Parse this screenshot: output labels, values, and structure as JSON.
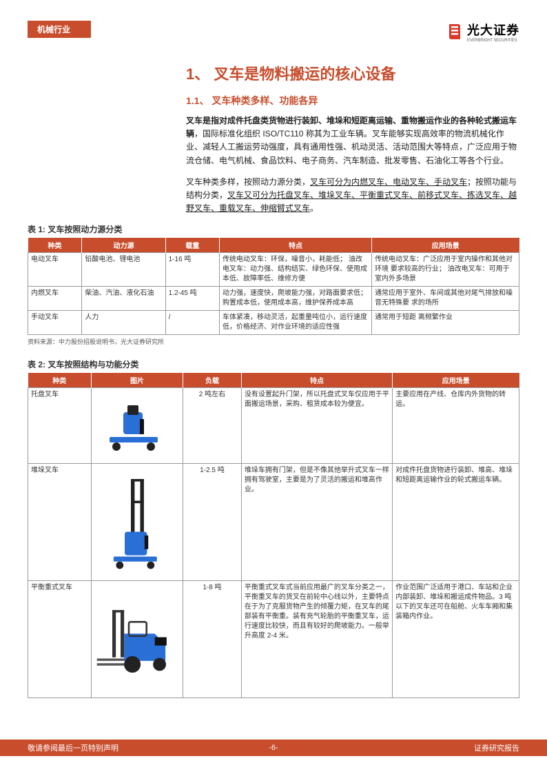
{
  "colors": {
    "accent": "#c84d2d",
    "text": "#333333",
    "border": "#999999",
    "white": "#ffffff"
  },
  "header": {
    "tab": "机械行业",
    "logo_main": "光大证券",
    "logo_sub": "EVERBRIGHT SECURITIES"
  },
  "h1": "1、 叉车是物料搬运的核心设备",
  "h2": "1.1、 叉车种类多样、功能各异",
  "para1_bold": "叉车是指对成件托盘类货物进行装卸、堆垛和短距离运输、重物搬运作业的各种轮式搬运车辆",
  "para1_rest": "，国际标准化组织 ISO/TC110 称其为工业车辆。叉车能够实现高效率的物流机械化作业、减轻人工搬运劳动强度，具有通用性强、机动灵活、活动范围大等特点，广泛应用于物流仓储、电气机械、食品饮料、电子商务、汽车制造、批发零售、石油化工等各个行业。",
  "para2_plain": "叉车种类多样，按照动力源分类，",
  "para2_u1": "叉车可分为内燃叉车、电动叉车、手动叉车",
  "para2_mid": "；按照功能与结构分类，",
  "para2_u2": "叉车又可分为托盘叉车、堆垛叉车、平衡重式叉车、前移式叉车、拣选叉车、越野叉车、重载叉车、伸缩臂式叉车",
  "para2_end": "。",
  "table1": {
    "caption": "表 1: 叉车按照动力源分类",
    "headers": [
      "种类",
      "动力源",
      "载重",
      "特点",
      "应用场景"
    ],
    "rows": [
      [
        "电动叉车",
        "铅酸电池、锂电池",
        "1-16 吨",
        "传统电动叉车：环保，噪音小，耗能低；\n油改电叉车：动力强、结构结实、绿色环保、使用成本低、故障率低、维修方便",
        "传统电动叉车：广泛应用于室内操作和其他对环境 要求较高的行业；\n油改电叉车：可用于室内外多场景"
      ],
      [
        "内燃叉车",
        "柴油、汽油、液化石油",
        "1.2-45 吨",
        "动力强，速度快，爬坡能力强，对路面要求低；购置成本低，使用成本高，维护保养成本高",
        "通常应用于室外、车间或其他对尾气排放和噪音无特殊要 求的场所"
      ],
      [
        "手动叉车",
        "人力",
        "/",
        "车体紧凑，移动灵活，起重量吨位小，运行速度低，价格经济、对作业环境的适应性强",
        "通常用于短距 离频繁作业"
      ]
    ],
    "source": "资料来源：中力股份招股说明书，光大证券研究所"
  },
  "table2": {
    "caption": "表 2: 叉车按照结构与功能分类",
    "headers": [
      "种类",
      "图片",
      "负载",
      "特点",
      "应用场景"
    ],
    "rows": [
      [
        "托盘叉车",
        "pallet-truck",
        "2 吨左右",
        "没有设置起升门架，所以托盘式叉车仅应用于平面搬运场景，采购、租赁成本较为便宜。",
        "主要应用在产线、仓库内外货物的转运。"
      ],
      [
        "堆垛叉车",
        "stacker",
        "1-2.5 吨",
        "堆垛车拥有门架，但是不像其他举升式叉车一样拥有驾驶室，主要是为了灵活的搬运和堆高作业。",
        "对成件托盘货物进行装卸、堆高、堆垛和短距离运输作业的轮式搬运车辆。"
      ],
      [
        "平衡重式叉车",
        "counterbalance",
        "1-8 吨",
        "平衡重式叉车式当前应用最广的叉车分类之一，平衡重叉车的货叉在前轮中心线以外，主要特点在于为了克服货物产生的倾覆力矩，在叉车的尾部装有平衡重。装有充气轮胎的平衡重叉车，运行速度比较快，而且有较好的爬坡能力。一般举升高度 2-4 米。",
        "作业范围广泛适用于港口、车站和企业内部装卸、堆垛和搬运成件物品。3 吨以下的叉车还可在船舱、火车车厢和集装箱内作业。"
      ]
    ]
  },
  "footer": {
    "left": "敬请参阅最后一页特别声明",
    "center": "-6-",
    "right": "证券研究报告"
  }
}
